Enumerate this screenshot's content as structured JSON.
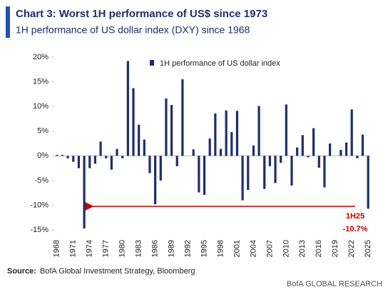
{
  "chart_data": {
    "type": "bar",
    "title": "Chart 3: Worst 1H performance of US$ since 1973",
    "subtitle": "1H performance of US dollar index (DXY) since 1968",
    "legend": "1H performance of US dollar index",
    "annotation_label": "1H25",
    "annotation_value": "-10.7%",
    "source_label": "Source:",
    "source": "BofA Global Investment Strategy, Bloomberg",
    "footer": "BofA GLOBAL RESEARCH",
    "color": "#1f2d6b",
    "categories": [
      "1968",
      null,
      null,
      "1971",
      null,
      null,
      "1974",
      null,
      null,
      "1977",
      null,
      null,
      "1980",
      null,
      null,
      "1983",
      null,
      null,
      "1986",
      null,
      null,
      "1989",
      null,
      null,
      "1992",
      null,
      null,
      "1995",
      null,
      null,
      "1998",
      null,
      null,
      "2001",
      null,
      null,
      "2004",
      null,
      null,
      "2007",
      null,
      null,
      "2010",
      null,
      null,
      "2013",
      null,
      null,
      "2016",
      null,
      null,
      "2019",
      null,
      null,
      "2022",
      null,
      null,
      "2025"
    ],
    "values": [
      0.2,
      0.2,
      -0.5,
      -1.2,
      -2.5,
      -14.7,
      -2.5,
      -1.6,
      2.9,
      -0.5,
      -2.8,
      1.4,
      -0.5,
      19.2,
      13.7,
      6.3,
      3.3,
      -3.5,
      -9.8,
      -5,
      11.6,
      10.3,
      -2.1,
      15.5,
      0,
      1.3,
      -7.4,
      -7.9,
      3.5,
      8.6,
      1.4,
      9.2,
      4.8,
      9.1,
      -9.0,
      -6.9,
      2.1,
      10.1,
      -6.7,
      -2.1,
      -5.5,
      -1.4,
      10.4,
      -6.0,
      1.7,
      4.2,
      -0.3,
      5.6,
      -2.4,
      -6.4,
      2.5,
      0,
      1.2,
      2.7,
      9.4,
      -0.5,
      4.3,
      -10.7
    ],
    "ylim": [
      -16,
      21
    ],
    "yticks": [
      {
        "value": -15,
        "label": "-15%"
      },
      {
        "value": -10,
        "label": "-10%"
      },
      {
        "value": -5,
        "label": "-5%"
      },
      {
        "value": 0,
        "label": "0%"
      },
      {
        "value": 5,
        "label": "5%"
      },
      {
        "value": 10,
        "label": "10%"
      },
      {
        "value": 15,
        "label": "15%"
      },
      {
        "value": 20,
        "label": "20%"
      }
    ]
  }
}
